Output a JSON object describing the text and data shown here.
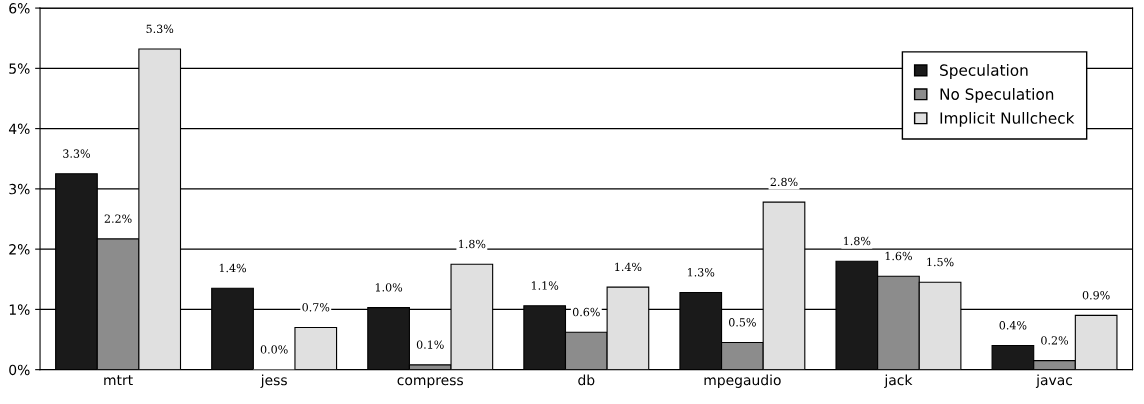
{
  "chart_data": {
    "type": "bar",
    "categories": [
      "mtrt",
      "jess",
      "compress",
      "db",
      "mpegaudio",
      "jack",
      "javac"
    ],
    "series": [
      {
        "name": "Speculation",
        "color": "#1a1a1a",
        "values": [
          3.25,
          1.35,
          1.03,
          1.06,
          1.28,
          1.8,
          0.4
        ],
        "value_labels": [
          "3.3%",
          "1.4%",
          "1.0%",
          "1.1%",
          "1.3%",
          "1.8%",
          "0.4%"
        ]
      },
      {
        "name": "No Speculation",
        "color": "#8c8c8c",
        "values": [
          2.17,
          0.0,
          0.08,
          0.62,
          0.45,
          1.55,
          0.15
        ],
        "value_labels": [
          "2.2%",
          "0.0%",
          "0.1%",
          "0.6%",
          "0.5%",
          "1.6%",
          "0.2%"
        ]
      },
      {
        "name": "Implicit Nullcheck",
        "color": "#e0e0e0",
        "values": [
          5.32,
          0.7,
          1.75,
          1.37,
          2.78,
          1.45,
          0.9
        ],
        "value_labels": [
          "5.3%",
          "0.7%",
          "1.8%",
          "1.4%",
          "2.8%",
          "1.5%",
          "0.9%"
        ]
      }
    ],
    "ylim": [
      0,
      6
    ],
    "yticks": [
      {
        "value": 0,
        "label": "0%"
      },
      {
        "value": 1,
        "label": "1%"
      },
      {
        "value": 2,
        "label": "2%"
      },
      {
        "value": 3,
        "label": "3%"
      },
      {
        "value": 4,
        "label": "4%"
      },
      {
        "value": 5,
        "label": "5%"
      },
      {
        "value": 6,
        "label": "6%"
      }
    ],
    "grid": "y",
    "legend": "top right"
  }
}
